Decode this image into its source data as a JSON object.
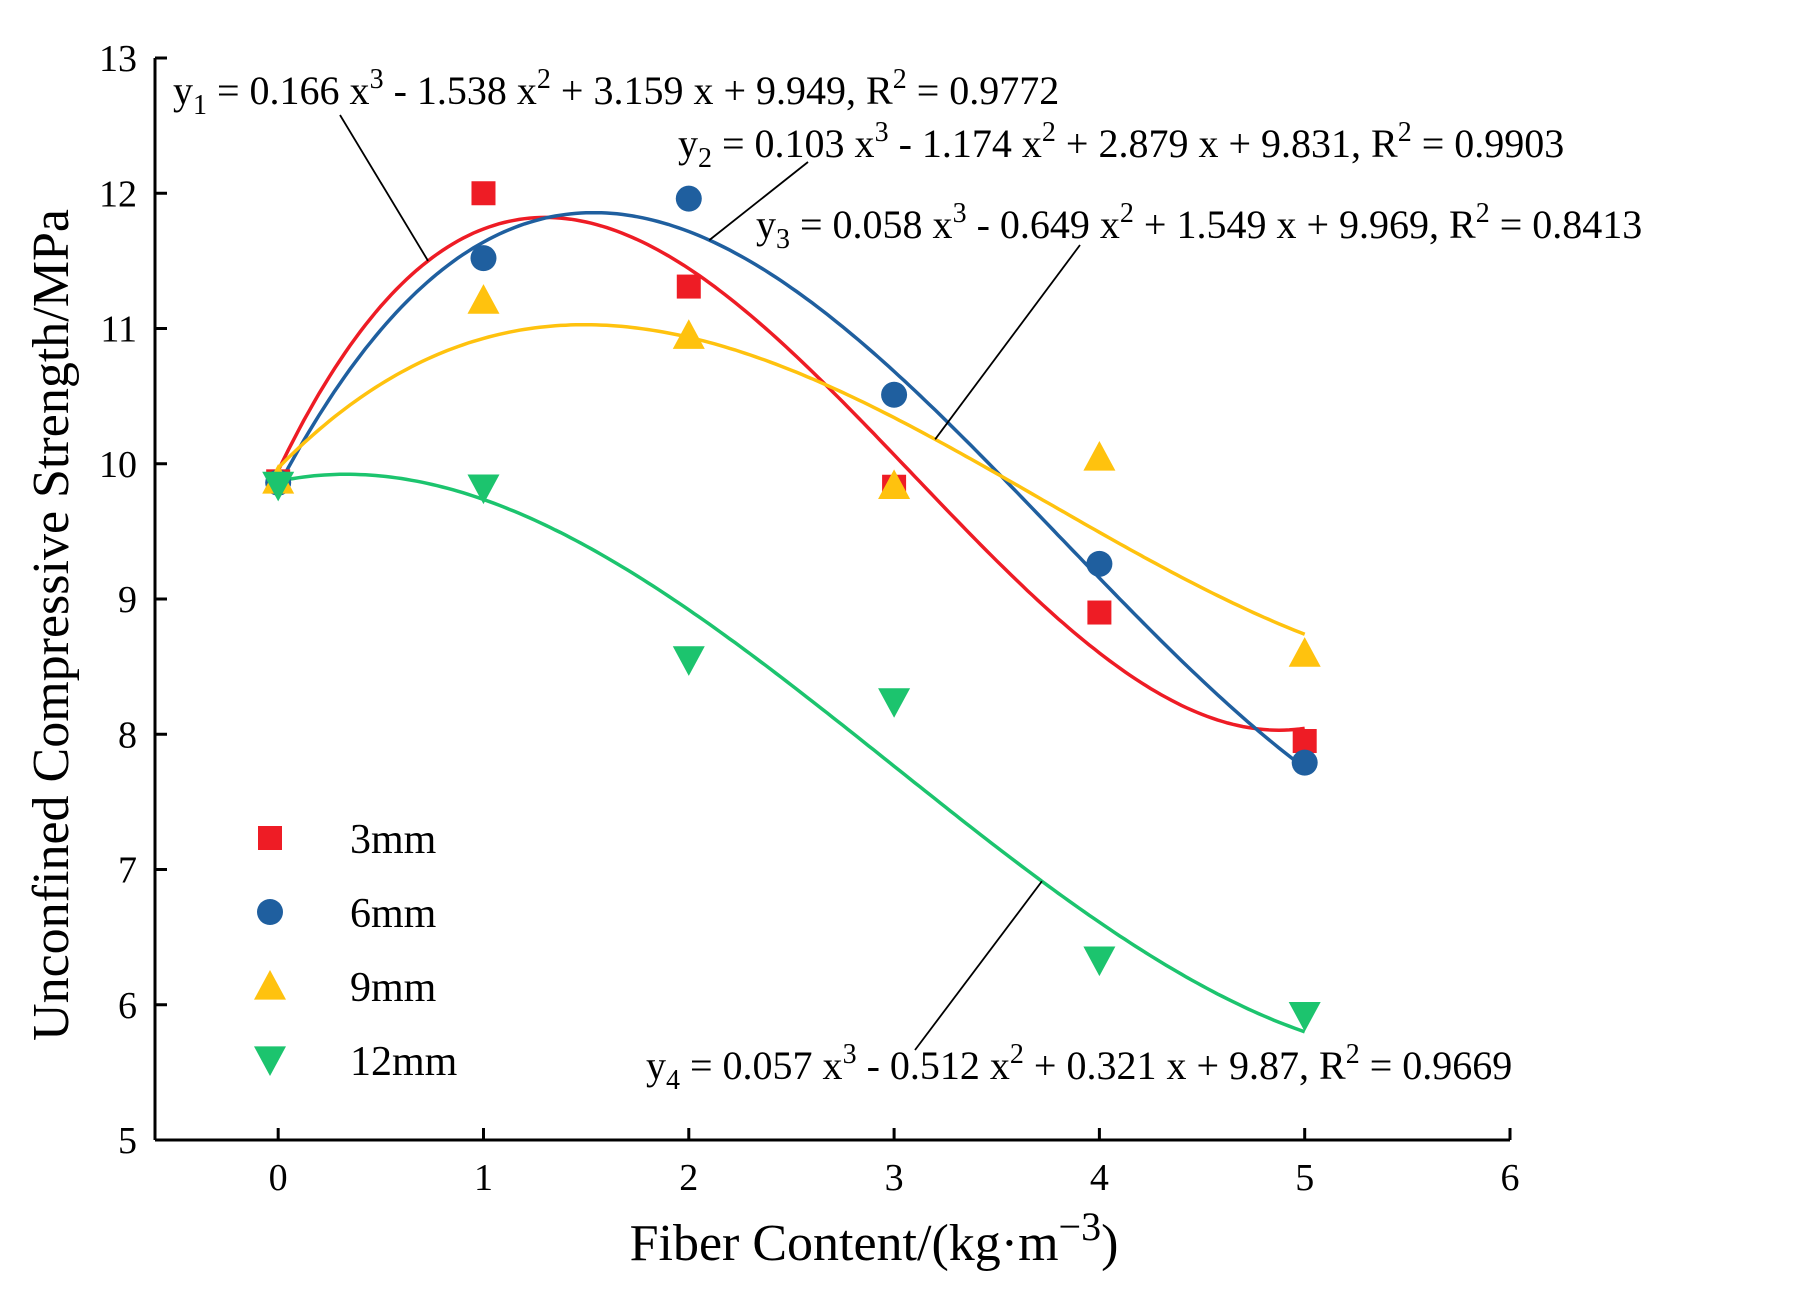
{
  "chart_data": {
    "type": "scatter",
    "xlabel": {
      "main": "Fiber Content/(kg·m",
      "sup": "−3",
      "close": ")"
    },
    "ylabel": "Unconfined Compressive Strength/MPa",
    "xlim": [
      -0.6,
      6
    ],
    "ylim": [
      5,
      13
    ],
    "xticks": [
      "0",
      "1",
      "2",
      "3",
      "4",
      "5",
      "6"
    ],
    "yticks": [
      "5",
      "6",
      "7",
      "8",
      "9",
      "10",
      "11",
      "12",
      "13"
    ],
    "x": [
      0,
      1,
      2,
      3,
      4,
      5
    ],
    "series": [
      {
        "name": "3mm",
        "color": "#ee1c25",
        "marker": "square",
        "values": [
          9.87,
          12.0,
          11.31,
          9.83,
          8.9,
          7.95
        ],
        "fit": {
          "a": 0.166,
          "b": -1.538,
          "c": 3.159,
          "d": 9.949
        }
      },
      {
        "name": "6mm",
        "color": "#1f5f9f",
        "marker": "circle",
        "values": [
          9.86,
          11.52,
          11.96,
          10.51,
          9.26,
          7.79
        ],
        "fit": {
          "a": 0.103,
          "b": -1.174,
          "c": 2.879,
          "d": 9.831
        }
      },
      {
        "name": "9mm",
        "color": "#ffc20e",
        "marker": "triangle-up",
        "values": [
          9.88,
          11.21,
          10.95,
          9.84,
          10.05,
          8.6
        ],
        "fit": {
          "a": 0.058,
          "b": -0.649,
          "c": 1.549,
          "d": 9.969
        }
      },
      {
        "name": "12mm",
        "color": "#1cc46e",
        "marker": "triangle-down",
        "values": [
          9.84,
          9.82,
          8.55,
          8.24,
          6.33,
          5.92
        ],
        "fit": {
          "a": 0.057,
          "b": -0.512,
          "c": 0.321,
          "d": 9.87
        }
      }
    ],
    "equations": [
      {
        "sub": "1",
        "t1": " = 0.166 x",
        "t2": " - 1.538 x",
        "t3": " + 3.159 x + 9.949, R",
        "t4": " = 0.9772"
      },
      {
        "sub": "2",
        "t1": " = 0.103 x",
        "t2": " - 1.174 x",
        "t3": " + 2.879 x + 9.831, R",
        "t4": " = 0.9903"
      },
      {
        "sub": "3",
        "t1": " = 0.058 x",
        "t2": " - 0.649 x",
        "t3": " + 1.549 x + 9.969, R",
        "t4": " = 0.8413"
      },
      {
        "sub": "4",
        "t1": " = 0.057 x",
        "t2": " - 0.512 x",
        "t3": " + 0.321 x + 9.87, R",
        "t4": " = 0.9669"
      }
    ],
    "legend_position": "bottom-left"
  }
}
